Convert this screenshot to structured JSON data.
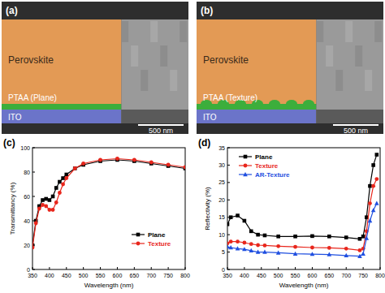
{
  "images": [
    {
      "title": "(a)",
      "layers": [
        "Perovskite",
        "PTAA (Plane)",
        "ITO"
      ],
      "scale_bar": "500 nm"
    },
    {
      "title": "(b)",
      "layers": [
        "Perovskite",
        "PTAA (Texture)",
        "ITO"
      ],
      "scale_bar": "500 nm"
    }
  ],
  "chart_data": [
    {
      "type": "line",
      "title": "(c)",
      "x_label": "Wavelength (nm)",
      "y_label": "Transmittancy (%)",
      "x": [
        350,
        360,
        370,
        380,
        390,
        400,
        410,
        420,
        430,
        440,
        450,
        475,
        500,
        550,
        600,
        650,
        700,
        750,
        800
      ],
      "series": [
        {
          "name": "Plane",
          "color": "#000000",
          "marker": "square",
          "values": [
            20,
            40,
            52,
            57,
            58,
            57,
            60,
            67,
            72,
            75,
            78,
            83,
            86,
            89,
            90,
            89,
            87,
            85,
            83
          ]
        },
        {
          "name": "Texture",
          "color": "#e8261c",
          "marker": "circle",
          "values": [
            18,
            38,
            50,
            53,
            52,
            49,
            49,
            55,
            63,
            70,
            75,
            83,
            87,
            90,
            91,
            90,
            88,
            86,
            84
          ]
        }
      ],
      "xlim": [
        350,
        800
      ],
      "xticks": [
        350,
        400,
        450,
        500,
        550,
        600,
        650,
        700,
        750,
        800
      ],
      "ylim": [
        0,
        100
      ],
      "yticks": [
        0,
        20,
        40,
        60,
        80,
        100
      ],
      "grid": false,
      "legend": "bottom-right"
    },
    {
      "type": "line",
      "title": "(d)",
      "x_label": "Wavelength (nm)",
      "y_label": "Reflectivity (%)",
      "x": [
        350,
        360,
        380,
        400,
        420,
        440,
        460,
        500,
        550,
        600,
        650,
        700,
        740,
        750,
        760,
        770,
        780,
        790
      ],
      "series": [
        {
          "name": "Plane",
          "color": "#000000",
          "marker": "square",
          "values": [
            13,
            15,
            15.5,
            14,
            11,
            10,
            9.8,
            9.5,
            9.5,
            9.6,
            9.5,
            9.2,
            8.8,
            9.5,
            15,
            24,
            30,
            33
          ]
        },
        {
          "name": "Texture",
          "color": "#e8261c",
          "marker": "circle",
          "values": [
            7.5,
            8,
            8,
            7.7,
            7.3,
            7,
            6.9,
            6.7,
            6.5,
            6.3,
            6.2,
            6,
            5.5,
            6,
            11,
            19,
            24,
            26
          ]
        },
        {
          "name": "AR-Texture",
          "color": "#1f4fe0",
          "marker": "triangle",
          "values": [
            6.5,
            6.3,
            6,
            5.8,
            5.4,
            5,
            5,
            4.8,
            4.5,
            4.4,
            4.3,
            4,
            3.8,
            4.5,
            9,
            14,
            17,
            19
          ]
        }
      ],
      "xlim": [
        350,
        800
      ],
      "xticks": [
        350,
        400,
        450,
        500,
        550,
        600,
        650,
        700,
        750,
        800
      ],
      "ylim": [
        0,
        35
      ],
      "yticks": [
        0,
        5,
        10,
        15,
        20,
        25,
        30,
        35
      ],
      "grid": false,
      "legend": "top-left"
    }
  ]
}
